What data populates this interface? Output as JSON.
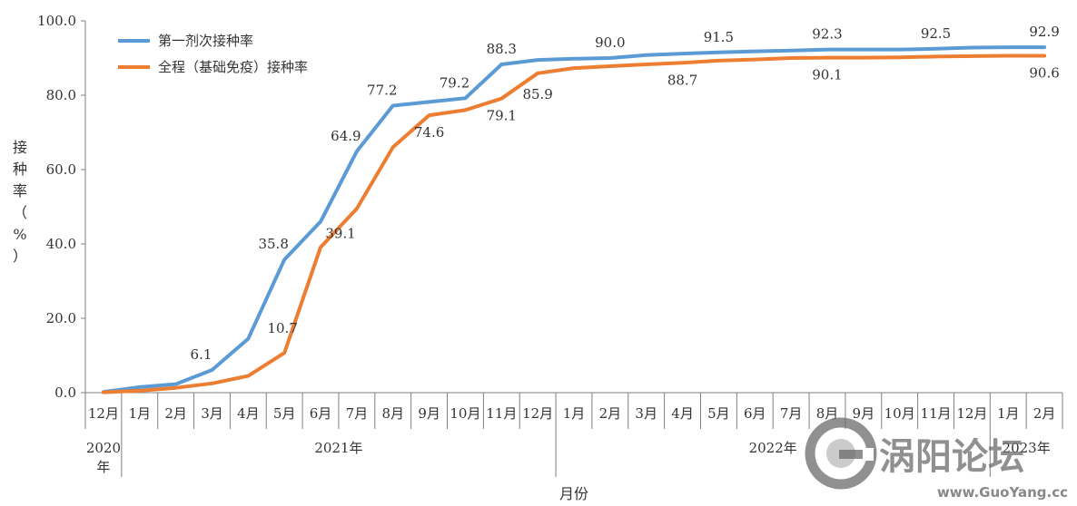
{
  "chart_data": {
    "type": "line",
    "ylabel": "接种率（%）",
    "xlabel": "月份",
    "ylim": [
      0,
      100
    ],
    "yticks": [
      "0.0",
      "20.0",
      "40.0",
      "60.0",
      "80.0",
      "100.0"
    ],
    "categories": [
      "12月",
      "1月",
      "2月",
      "3月",
      "4月",
      "5月",
      "6月",
      "7月",
      "8月",
      "9月",
      "10月",
      "11月",
      "12月",
      "1月",
      "2月",
      "3月",
      "4月",
      "5月",
      "6月",
      "7月",
      "8月",
      "9月",
      "10月",
      "11月",
      "12月",
      "1月",
      "2月"
    ],
    "year_groups": [
      {
        "label": "2020年",
        "start": 0,
        "end": 0
      },
      {
        "label": "2021年",
        "start": 1,
        "end": 12
      },
      {
        "label": "2022年",
        "start": 13,
        "end": 24
      },
      {
        "label": "2023年",
        "start": 25,
        "end": 26
      }
    ],
    "legend_position": "top-left",
    "grid": false,
    "series": [
      {
        "name": "第一剂次接种率",
        "color": "#5b9bd5",
        "values": [
          0.2,
          1.5,
          2.3,
          6.1,
          14.5,
          35.8,
          46.0,
          64.9,
          77.2,
          78.2,
          79.2,
          88.3,
          89.5,
          89.8,
          90.0,
          90.8,
          91.2,
          91.5,
          91.8,
          92.0,
          92.3,
          92.3,
          92.3,
          92.5,
          92.8,
          92.9,
          92.9
        ],
        "labels": {
          "3": "6.1",
          "5": "35.8",
          "7": "64.9",
          "8": "77.2",
          "10": "79.2",
          "11": "88.3",
          "14": "90.0",
          "17": "91.5",
          "20": "92.3",
          "23": "92.5",
          "26": "92.9"
        }
      },
      {
        "name": "全程（基础免疫）接种率",
        "color": "#ed7d31",
        "values": [
          0.1,
          0.5,
          1.3,
          2.5,
          4.5,
          10.7,
          39.1,
          49.5,
          66.0,
          74.6,
          76.0,
          79.1,
          85.9,
          87.3,
          87.8,
          88.3,
          88.7,
          89.3,
          89.6,
          90.0,
          90.1,
          90.1,
          90.2,
          90.4,
          90.5,
          90.6,
          90.6
        ],
        "labels": {
          "5": "10.7",
          "6": "39.1",
          "9": "74.6",
          "11": "79.1",
          "12": "85.9",
          "16": "88.7",
          "20": "90.1",
          "26": "90.6"
        }
      }
    ]
  },
  "watermark": {
    "text": "涡阳论坛",
    "url": "www.GuoYang.cc"
  }
}
